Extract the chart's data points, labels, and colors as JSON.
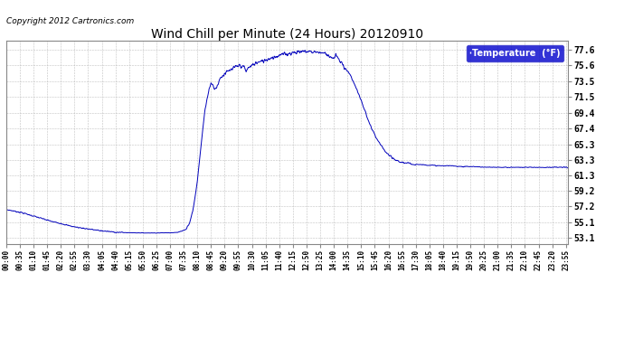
{
  "title": "Wind Chill per Minute (24 Hours) 20120910",
  "copyright": "Copyright 2012 Cartronics.com",
  "legend_label": "Temperature  (°F)",
  "line_color": "#0000BB",
  "background_color": "#ffffff",
  "grid_color": "#bbbbbb",
  "yticks": [
    53.1,
    55.1,
    57.2,
    59.2,
    61.3,
    63.3,
    65.3,
    67.4,
    69.4,
    71.5,
    73.5,
    75.6,
    77.6
  ],
  "ylim": [
    52.3,
    78.8
  ],
  "xlim": [
    0,
    1440
  ],
  "curve_key_points": [
    [
      0,
      56.8
    ],
    [
      20,
      56.6
    ],
    [
      40,
      56.4
    ],
    [
      60,
      56.1
    ],
    [
      80,
      55.8
    ],
    [
      100,
      55.5
    ],
    [
      120,
      55.2
    ],
    [
      140,
      55.0
    ],
    [
      160,
      54.7
    ],
    [
      180,
      54.5
    ],
    [
      200,
      54.35
    ],
    [
      220,
      54.2
    ],
    [
      240,
      54.05
    ],
    [
      260,
      53.95
    ],
    [
      280,
      53.85
    ],
    [
      300,
      53.8
    ],
    [
      320,
      53.78
    ],
    [
      340,
      53.76
    ],
    [
      360,
      53.75
    ],
    [
      380,
      53.75
    ],
    [
      400,
      53.76
    ],
    [
      420,
      53.78
    ],
    [
      440,
      53.82
    ],
    [
      460,
      54.2
    ],
    [
      470,
      55.0
    ],
    [
      480,
      57.0
    ],
    [
      490,
      60.5
    ],
    [
      500,
      65.5
    ],
    [
      510,
      70.0
    ],
    [
      520,
      72.5
    ],
    [
      525,
      73.2
    ],
    [
      530,
      73.0
    ],
    [
      535,
      72.5
    ],
    [
      540,
      72.8
    ],
    [
      545,
      73.5
    ],
    [
      550,
      74.0
    ],
    [
      560,
      74.5
    ],
    [
      570,
      74.8
    ],
    [
      580,
      75.1
    ],
    [
      590,
      75.4
    ],
    [
      600,
      75.6
    ],
    [
      610,
      75.3
    ],
    [
      615,
      74.8
    ],
    [
      620,
      75.2
    ],
    [
      630,
      75.6
    ],
    [
      640,
      75.9
    ],
    [
      650,
      76.0
    ],
    [
      660,
      76.2
    ],
    [
      670,
      76.4
    ],
    [
      680,
      76.6
    ],
    [
      690,
      76.7
    ],
    [
      700,
      76.9
    ],
    [
      710,
      77.0
    ],
    [
      720,
      77.1
    ],
    [
      730,
      77.2
    ],
    [
      740,
      77.3
    ],
    [
      750,
      77.35
    ],
    [
      760,
      77.4
    ],
    [
      770,
      77.4
    ],
    [
      780,
      77.4
    ],
    [
      790,
      77.35
    ],
    [
      800,
      77.3
    ],
    [
      810,
      77.25
    ],
    [
      820,
      77.1
    ],
    [
      830,
      76.8
    ],
    [
      840,
      76.4
    ],
    [
      845,
      76.9
    ],
    [
      850,
      76.5
    ],
    [
      855,
      76.2
    ],
    [
      860,
      75.8
    ],
    [
      870,
      75.2
    ],
    [
      880,
      74.5
    ],
    [
      890,
      73.5
    ],
    [
      900,
      72.3
    ],
    [
      910,
      71.0
    ],
    [
      920,
      69.6
    ],
    [
      930,
      68.2
    ],
    [
      940,
      67.0
    ],
    [
      950,
      66.0
    ],
    [
      960,
      65.2
    ],
    [
      970,
      64.5
    ],
    [
      980,
      63.9
    ],
    [
      990,
      63.5
    ],
    [
      1000,
      63.2
    ],
    [
      1010,
      63.0
    ],
    [
      1020,
      62.9
    ],
    [
      1030,
      62.8
    ],
    [
      1050,
      62.7
    ],
    [
      1080,
      62.6
    ],
    [
      1110,
      62.5
    ],
    [
      1140,
      62.5
    ],
    [
      1170,
      62.4
    ],
    [
      1200,
      62.4
    ],
    [
      1230,
      62.3
    ],
    [
      1260,
      62.3
    ],
    [
      1290,
      62.3
    ],
    [
      1320,
      62.3
    ],
    [
      1350,
      62.3
    ],
    [
      1380,
      62.3
    ],
    [
      1410,
      62.3
    ],
    [
      1440,
      62.3
    ]
  ]
}
